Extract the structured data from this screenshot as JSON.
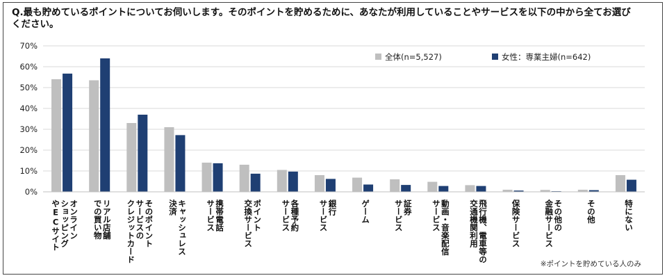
{
  "question": "Q.最も貯めているポイントについてお伺いします。そのポイントを貯めるために、あなたが利用していることやサービスを以下の中から全てお選びください。",
  "footnote": "※ポイントを貯めている人のみ",
  "chart_data": {
    "type": "bar",
    "categories": [
      [
        "オンライン",
        "ショッピング",
        "やECサイト"
      ],
      [
        "リアル店舗",
        "での買い物"
      ],
      [
        "そのポイント",
        "サービスの",
        "クレジットカード"
      ],
      [
        "キャッシュレス",
        "決済"
      ],
      [
        "携帯電話",
        "サービス"
      ],
      [
        "ポイント",
        "交換サービス"
      ],
      [
        "各種予約",
        "サービス"
      ],
      [
        "銀行",
        "サービス"
      ],
      [
        "ゲーム"
      ],
      [
        "証券",
        "サービス"
      ],
      [
        "動画・音楽配信",
        "サービス"
      ],
      [
        "飛行機、電車等の",
        "交通機関利用"
      ],
      [
        "保険サービス"
      ],
      [
        "その他の",
        "金融サービス"
      ],
      [
        "その他"
      ],
      [
        "特にない"
      ]
    ],
    "series": [
      {
        "name": "全体(n=5,527)",
        "color": "#bfbfbf",
        "values": [
          54.0,
          53.5,
          33.0,
          31.0,
          14.0,
          13.0,
          10.5,
          8.0,
          6.8,
          6.0,
          4.8,
          3.2,
          1.0,
          0.9,
          1.0,
          8.0
        ]
      },
      {
        "name": "女性：専業主婦(n=642)",
        "color": "#1f3f73",
        "values": [
          56.7,
          64.0,
          37.0,
          27.2,
          13.7,
          8.7,
          9.7,
          6.2,
          3.5,
          3.3,
          2.8,
          2.8,
          0.6,
          0.3,
          0.8,
          5.8
        ]
      }
    ],
    "yticks": [
      "0%",
      "10%",
      "20%",
      "30%",
      "40%",
      "50%",
      "60%",
      "70%"
    ],
    "ylim": [
      0,
      70
    ],
    "grid": true,
    "legend_position": "top-right"
  }
}
